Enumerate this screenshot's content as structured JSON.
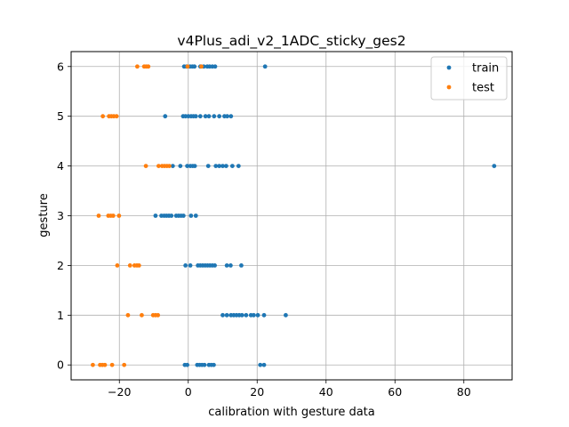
{
  "chart_data": {
    "type": "scatter",
    "title": "v4Plus_adi_v2_1ADC_sticky_ges2",
    "xlabel": "calibration with gesture data",
    "ylabel": "gesture",
    "xlim": [
      -34,
      94
    ],
    "ylim": [
      -0.3,
      6.3
    ],
    "xticks": [
      -20,
      0,
      20,
      40,
      60,
      80
    ],
    "xtick_labels": [
      "−20",
      "0",
      "20",
      "40",
      "60",
      "80"
    ],
    "yticks": [
      0,
      1,
      2,
      3,
      4,
      5,
      6
    ],
    "ytick_labels": [
      "0",
      "1",
      "2",
      "3",
      "4",
      "5",
      "6"
    ],
    "grid": true,
    "legend_position": "top-right",
    "series": [
      {
        "name": "train",
        "color": "#1f77b4",
        "points": [
          [
            -1.2,
            6
          ],
          [
            -0.5,
            6
          ],
          [
            0.5,
            6
          ],
          [
            1.2,
            6
          ],
          [
            1.8,
            6
          ],
          [
            3.5,
            6
          ],
          [
            4.5,
            6
          ],
          [
            5.5,
            6
          ],
          [
            6.2,
            6
          ],
          [
            7.0,
            6
          ],
          [
            7.8,
            6
          ],
          [
            22.3,
            6
          ],
          [
            -6.7,
            5
          ],
          [
            -1.5,
            5
          ],
          [
            -0.8,
            5
          ],
          [
            0,
            5
          ],
          [
            0.8,
            5
          ],
          [
            1.5,
            5
          ],
          [
            2.2,
            5
          ],
          [
            3.5,
            5
          ],
          [
            5.0,
            5
          ],
          [
            6.0,
            5
          ],
          [
            7.5,
            5
          ],
          [
            9.0,
            5
          ],
          [
            10.5,
            5
          ],
          [
            11.3,
            5
          ],
          [
            12.4,
            5
          ],
          [
            -4.5,
            4
          ],
          [
            -2.3,
            4
          ],
          [
            -0.3,
            4
          ],
          [
            0.6,
            4
          ],
          [
            1.3,
            4
          ],
          [
            1.9,
            4
          ],
          [
            5.8,
            4
          ],
          [
            8.0,
            4
          ],
          [
            9.0,
            4
          ],
          [
            10.0,
            4
          ],
          [
            11.0,
            4
          ],
          [
            12.8,
            4
          ],
          [
            14.6,
            4
          ],
          [
            88.8,
            4
          ],
          [
            -9.5,
            3
          ],
          [
            -7.8,
            3
          ],
          [
            -7.0,
            3
          ],
          [
            -6.3,
            3
          ],
          [
            -5.6,
            3
          ],
          [
            -4.9,
            3
          ],
          [
            -3.5,
            3
          ],
          [
            -2.8,
            3
          ],
          [
            -2.1,
            3
          ],
          [
            -1.4,
            3
          ],
          [
            0.8,
            3
          ],
          [
            2.2,
            3
          ],
          [
            -0.8,
            2
          ],
          [
            0.6,
            2
          ],
          [
            2.8,
            2
          ],
          [
            3.5,
            2
          ],
          [
            4.2,
            2
          ],
          [
            4.9,
            2
          ],
          [
            5.6,
            2
          ],
          [
            6.3,
            2
          ],
          [
            7.0,
            2
          ],
          [
            7.7,
            2
          ],
          [
            11.2,
            2
          ],
          [
            12.3,
            2
          ],
          [
            15.4,
            2
          ],
          [
            10.0,
            1
          ],
          [
            11.2,
            1
          ],
          [
            12.4,
            1
          ],
          [
            13.2,
            1
          ],
          [
            14.0,
            1
          ],
          [
            14.8,
            1
          ],
          [
            15.6,
            1
          ],
          [
            16.8,
            1
          ],
          [
            18.2,
            1
          ],
          [
            19.0,
            1
          ],
          [
            20.2,
            1
          ],
          [
            22.0,
            1
          ],
          [
            28.3,
            1
          ],
          [
            -1.0,
            0
          ],
          [
            -0.3,
            0
          ],
          [
            2.6,
            0
          ],
          [
            3.3,
            0
          ],
          [
            4.0,
            0
          ],
          [
            4.7,
            0
          ],
          [
            6.0,
            0
          ],
          [
            6.7,
            0
          ],
          [
            7.4,
            0
          ],
          [
            20.9,
            0
          ],
          [
            22.0,
            0
          ]
        ]
      },
      {
        "name": "test",
        "color": "#ff7f0e",
        "points": [
          [
            -14.8,
            6
          ],
          [
            -12.8,
            6
          ],
          [
            -12.2,
            6
          ],
          [
            -11.6,
            6
          ],
          [
            -0.2,
            6
          ],
          [
            3.8,
            6
          ],
          [
            -24.8,
            5
          ],
          [
            -23.0,
            5
          ],
          [
            -22.3,
            5
          ],
          [
            -21.6,
            5
          ],
          [
            -20.8,
            5
          ],
          [
            -12.3,
            4
          ],
          [
            -8.6,
            4
          ],
          [
            -7.6,
            4
          ],
          [
            -6.9,
            4
          ],
          [
            -6.2,
            4
          ],
          [
            -5.5,
            4
          ],
          [
            -26.0,
            3
          ],
          [
            -23.2,
            3
          ],
          [
            -22.5,
            3
          ],
          [
            -21.8,
            3
          ],
          [
            -20.1,
            3
          ],
          [
            -20.6,
            2
          ],
          [
            -16.9,
            2
          ],
          [
            -15.6,
            2
          ],
          [
            -14.9,
            2
          ],
          [
            -14.3,
            2
          ],
          [
            -17.5,
            1
          ],
          [
            -13.5,
            1
          ],
          [
            -10.2,
            1
          ],
          [
            -9.5,
            1
          ],
          [
            -8.8,
            1
          ],
          [
            -27.7,
            0
          ],
          [
            -25.6,
            0
          ],
          [
            -24.9,
            0
          ],
          [
            -24.2,
            0
          ],
          [
            -22.1,
            0
          ],
          [
            -18.6,
            0
          ]
        ]
      }
    ]
  }
}
